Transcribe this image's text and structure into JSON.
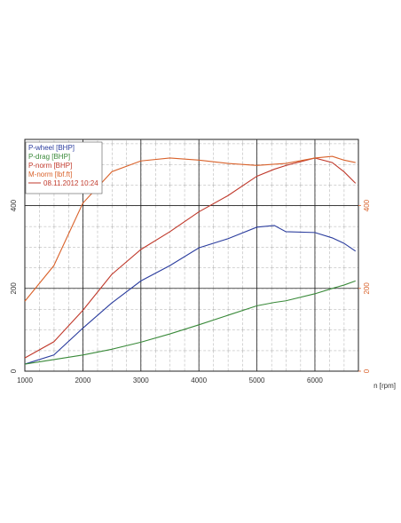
{
  "chart_data": {
    "type": "line",
    "x_label": "n [rpm]",
    "run_label": "08.11.2012 10:24",
    "x": [
      1000,
      1500,
      2000,
      2500,
      3000,
      3500,
      4000,
      4500,
      5000,
      5300,
      5500,
      6000,
      6300,
      6500,
      6700
    ],
    "series": [
      {
        "name": "P-wheel [BHP]",
        "color": "#2b3d9e",
        "values": [
          17,
          39,
          104,
          165,
          218,
          255,
          298,
          320,
          348,
          352,
          337,
          335,
          322,
          309,
          290
        ]
      },
      {
        "name": "P-drag [BHP]",
        "color": "#3a8a3a",
        "values": [
          17,
          28,
          39,
          53,
          70,
          90,
          112,
          135,
          158,
          166,
          170,
          187,
          200,
          208,
          218
        ]
      },
      {
        "name": "P-norm [BHP]",
        "color": "#c0392b",
        "values": [
          32,
          71,
          147,
          234,
          294,
          337,
          385,
          424,
          471,
          488,
          497,
          515,
          504,
          482,
          454
        ]
      },
      {
        "name": "M-norm [lbf.ft]",
        "color": "#d9622b",
        "axis": "y2",
        "values": [
          169,
          255,
          406,
          482,
          508,
          515,
          510,
          502,
          497,
          500,
          502,
          515,
          519,
          510,
          504
        ]
      }
    ],
    "xlim": [
      1000,
      6750
    ],
    "xticks": [
      1000,
      2000,
      3000,
      4000,
      5000,
      6000
    ],
    "ylim": [
      0,
      560
    ],
    "yticks": [
      0,
      200,
      400
    ],
    "y2lim": [
      0,
      560
    ],
    "y2ticks": [
      0,
      200,
      400
    ],
    "grid": true
  }
}
